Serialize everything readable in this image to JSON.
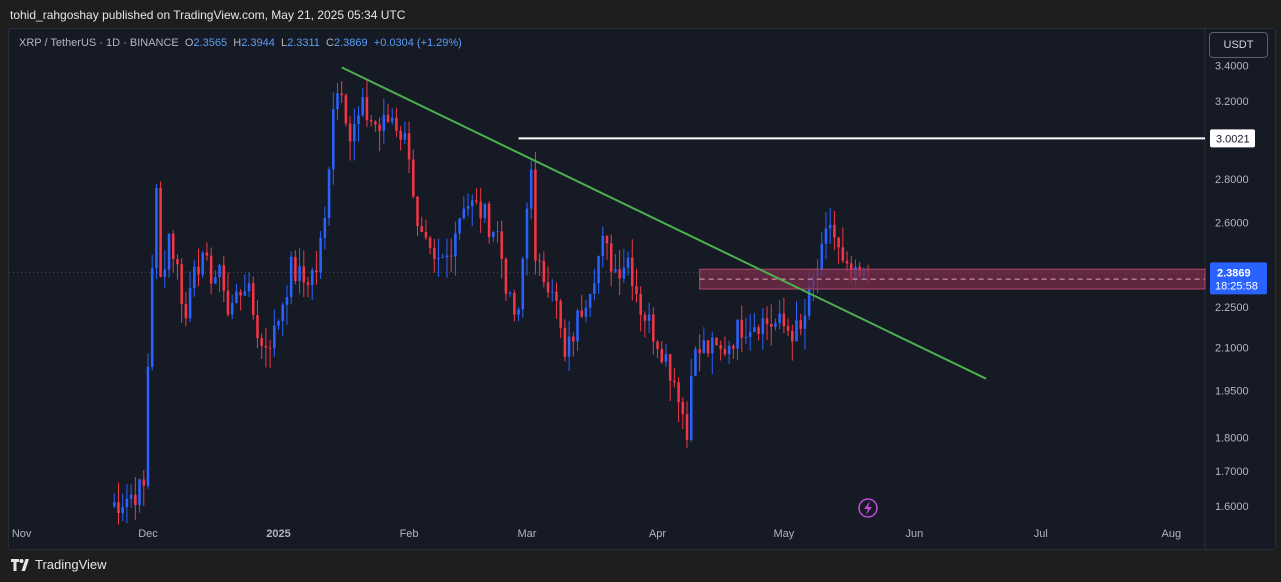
{
  "header": {
    "publisher_line": "tohid_rahgoshay published on TradingView.com, May 21, 2025 05:34 UTC"
  },
  "legend": {
    "symbol": "XRP / TetherUS · 1D · BINANCE",
    "open_label": "O",
    "open": "2.3565",
    "high_label": "H",
    "high": "2.3944",
    "low_label": "L",
    "low": "2.3311",
    "close_label": "C",
    "close": "2.3869",
    "change": "+0.0304 (+1.29%)"
  },
  "currency_button": "USDT",
  "footer": {
    "brand": "TradingView"
  },
  "colors": {
    "up": "#2962ff",
    "down": "#f23645",
    "trendline": "#4caf50",
    "level_line": "#ffffff",
    "zone": "#7a2c4a",
    "background": "#161a25"
  },
  "chart_data": {
    "type": "candlestick",
    "symbol": "XRP/USDT",
    "interval": "1D",
    "y_ticks": [
      "3.4000",
      "3.2000",
      "2.8000",
      "2.6000",
      "2.2500",
      "2.1000",
      "1.9500",
      "1.8000",
      "1.7000",
      "1.6000"
    ],
    "y_tick_values": [
      3.4,
      3.2,
      2.8,
      2.6,
      2.25,
      2.1,
      1.95,
      1.8,
      1.7,
      1.6
    ],
    "ylim": [
      1.56,
      3.62
    ],
    "scale": "log",
    "x_ticks": [
      {
        "label": "Nov",
        "date": "2024-11-01"
      },
      {
        "label": "Dec",
        "date": "2024-12-01"
      },
      {
        "label": "2025",
        "date": "2025-01-01"
      },
      {
        "label": "Feb",
        "date": "2025-02-01"
      },
      {
        "label": "Mar",
        "date": "2025-03-01"
      },
      {
        "label": "Apr",
        "date": "2025-04-01"
      },
      {
        "label": "May",
        "date": "2025-05-01"
      },
      {
        "label": "Jun",
        "date": "2025-06-01"
      },
      {
        "label": "Jul",
        "date": "2025-07-01"
      },
      {
        "label": "Aug",
        "date": "2025-08-01"
      }
    ],
    "xlim": [
      "2024-10-29",
      "2025-08-09"
    ],
    "last_price_label": "2.3869",
    "last_price": 2.3869,
    "countdown": "18:25:58",
    "level_label": "3.0021",
    "level_price": 3.0021,
    "level_start": "2025-02-27",
    "trendline": {
      "start": [
        "2025-01-16",
        3.39
      ],
      "end": [
        "2025-06-18",
        1.99
      ]
    },
    "zone": {
      "start": "2025-04-11",
      "top": 2.4,
      "bottom": 2.32
    },
    "anchors": [
      [
        "2024-11-22",
        1.6
      ],
      [
        "2024-11-30",
        1.65
      ],
      [
        "2024-12-02",
        2.43
      ],
      [
        "2024-12-03",
        2.72
      ],
      [
        "2024-12-04",
        2.35
      ],
      [
        "2024-12-06",
        2.55
      ],
      [
        "2024-12-08",
        2.4
      ],
      [
        "2024-12-10",
        2.2
      ],
      [
        "2024-12-12",
        2.45
      ],
      [
        "2024-12-15",
        2.4
      ],
      [
        "2024-12-19",
        2.35
      ],
      [
        "2024-12-20",
        2.23
      ],
      [
        "2024-12-24",
        2.35
      ],
      [
        "2024-12-28",
        2.1
      ],
      [
        "2024-12-31",
        2.15
      ],
      [
        "2025-01-04",
        2.4
      ],
      [
        "2025-01-07",
        2.35
      ],
      [
        "2025-01-10",
        2.4
      ],
      [
        "2025-01-12",
        2.6
      ],
      [
        "2025-01-14",
        3.2
      ],
      [
        "2025-01-16",
        3.3
      ],
      [
        "2025-01-18",
        3.0
      ],
      [
        "2025-01-21",
        3.15
      ],
      [
        "2025-01-25",
        3.05
      ],
      [
        "2025-01-28",
        3.12
      ],
      [
        "2025-02-01",
        2.95
      ],
      [
        "2025-02-03",
        2.55
      ],
      [
        "2025-02-07",
        2.4
      ],
      [
        "2025-02-10",
        2.45
      ],
      [
        "2025-02-14",
        2.7
      ],
      [
        "2025-02-18",
        2.65
      ],
      [
        "2025-02-22",
        2.55
      ],
      [
        "2025-02-25",
        2.25
      ],
      [
        "2025-02-27",
        2.2
      ],
      [
        "2025-03-02",
        2.9
      ],
      [
        "2025-03-03",
        2.4
      ],
      [
        "2025-03-07",
        2.35
      ],
      [
        "2025-03-10",
        2.05
      ],
      [
        "2025-03-14",
        2.25
      ],
      [
        "2025-03-19",
        2.5
      ],
      [
        "2025-03-22",
        2.4
      ],
      [
        "2025-03-25",
        2.45
      ],
      [
        "2025-03-28",
        2.25
      ],
      [
        "2025-04-02",
        2.1
      ],
      [
        "2025-04-06",
        1.95
      ],
      [
        "2025-04-08",
        1.8
      ],
      [
        "2025-04-09",
        2.05
      ],
      [
        "2025-04-12",
        2.1
      ],
      [
        "2025-04-16",
        2.08
      ],
      [
        "2025-04-21",
        2.18
      ],
      [
        "2025-04-25",
        2.2
      ],
      [
        "2025-04-30",
        2.18
      ],
      [
        "2025-05-05",
        2.15
      ],
      [
        "2025-05-08",
        2.35
      ],
      [
        "2025-05-10",
        2.45
      ],
      [
        "2025-05-12",
        2.6
      ],
      [
        "2025-05-15",
        2.4
      ],
      [
        "2025-05-17",
        2.35
      ],
      [
        "2025-05-20",
        2.3565
      ],
      [
        "2025-05-21",
        2.3869
      ]
    ]
  }
}
